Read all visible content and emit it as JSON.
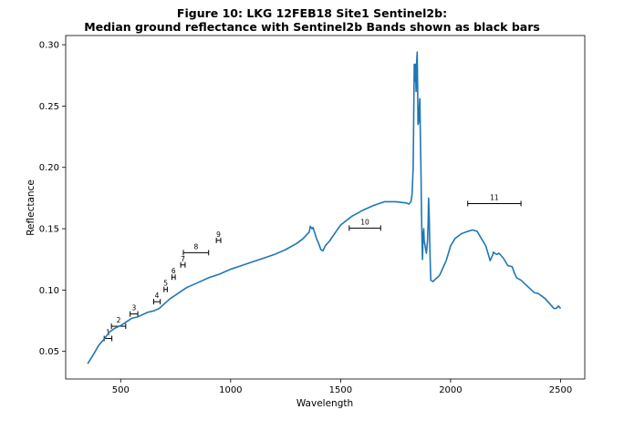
{
  "chart_data": {
    "type": "line",
    "title_line1": "Figure 10: LKG 12FEB18 Site1 Sentinel2b:",
    "title_line2": "Median ground reflectance with Sentinel2b Bands shown as black bars",
    "xlabel": "Wavelength",
    "ylabel": "Reflectance",
    "xlim": [
      250,
      2610
    ],
    "ylim": [
      0.0275,
      0.3075
    ],
    "xticks": [
      500,
      1000,
      1500,
      2000,
      2500
    ],
    "yticks": [
      0.05,
      0.1,
      0.15,
      0.2,
      0.25,
      0.3
    ],
    "xtick_labels": [
      "500",
      "1000",
      "1500",
      "2000",
      "2500"
    ],
    "ytick_labels": [
      "0.05",
      "0.10",
      "0.15",
      "0.20",
      "0.25",
      "0.30"
    ],
    "grid": false,
    "line_color": "#1f77b4",
    "band_color": "#000000",
    "series": [
      {
        "x": [
          350,
          375,
          400,
          425,
          450,
          475,
          500,
          525,
          550,
          575,
          600,
          625,
          650,
          675,
          700,
          725,
          750,
          775,
          800,
          850,
          900,
          950,
          1000,
          1050,
          1100,
          1150,
          1200,
          1250,
          1300,
          1330,
          1350,
          1357,
          1362,
          1370,
          1375,
          1380,
          1385,
          1390,
          1400,
          1410,
          1420,
          1430,
          1450,
          1480,
          1500,
          1550,
          1600,
          1650,
          1700,
          1750,
          1800,
          1810,
          1820,
          1825,
          1830,
          1835,
          1838,
          1840,
          1843,
          1845,
          1848,
          1850,
          1852,
          1855,
          1858,
          1860,
          1862,
          1865,
          1867,
          1870,
          1872,
          1875,
          1878,
          1880,
          1885,
          1890,
          1895,
          1898,
          1900,
          1903,
          1905,
          1908,
          1910,
          1920,
          1950,
          1980,
          2000,
          2020,
          2050,
          2080,
          2100,
          2120,
          2140,
          2160,
          2180,
          2190,
          2195,
          2200,
          2210,
          2220,
          2240,
          2260,
          2280,
          2290,
          2300,
          2320,
          2350,
          2380,
          2400,
          2430,
          2450,
          2470,
          2480,
          2490,
          2495,
          2500
        ],
        "y": [
          0.04,
          0.047,
          0.055,
          0.06,
          0.066,
          0.069,
          0.071,
          0.074,
          0.077,
          0.078,
          0.08,
          0.082,
          0.083,
          0.085,
          0.089,
          0.093,
          0.096,
          0.099,
          0.102,
          0.106,
          0.11,
          0.113,
          0.117,
          0.12,
          0.123,
          0.126,
          0.129,
          0.133,
          0.138,
          0.142,
          0.146,
          0.147,
          0.152,
          0.15,
          0.151,
          0.148,
          0.145,
          0.142,
          0.138,
          0.133,
          0.132,
          0.136,
          0.14,
          0.148,
          0.153,
          0.16,
          0.165,
          0.169,
          0.172,
          0.172,
          0.171,
          0.17,
          0.172,
          0.178,
          0.2,
          0.284,
          0.27,
          0.284,
          0.262,
          0.284,
          0.294,
          0.265,
          0.235,
          0.237,
          0.25,
          0.256,
          0.23,
          0.2,
          0.17,
          0.14,
          0.125,
          0.145,
          0.15,
          0.14,
          0.135,
          0.13,
          0.14,
          0.155,
          0.175,
          0.16,
          0.14,
          0.12,
          0.108,
          0.107,
          0.112,
          0.124,
          0.136,
          0.142,
          0.146,
          0.148,
          0.149,
          0.148,
          0.142,
          0.136,
          0.124,
          0.128,
          0.131,
          0.13,
          0.129,
          0.13,
          0.126,
          0.12,
          0.119,
          0.114,
          0.11,
          0.108,
          0.103,
          0.098,
          0.097,
          0.093,
          0.089,
          0.085,
          0.085,
          0.087,
          0.086,
          0.085
        ]
      }
    ],
    "bands": [
      {
        "label": "1",
        "min": 425,
        "max": 460,
        "y": 0.0605
      },
      {
        "label": "2",
        "min": 458,
        "max": 523,
        "y": 0.0705
      },
      {
        "label": "3",
        "min": 543,
        "max": 578,
        "y": 0.0805
      },
      {
        "label": "4",
        "min": 650,
        "max": 680,
        "y": 0.0905
      },
      {
        "label": "5",
        "min": 697,
        "max": 712,
        "y": 0.1005
      },
      {
        "label": "6",
        "min": 733,
        "max": 748,
        "y": 0.1105
      },
      {
        "label": "7",
        "min": 773,
        "max": 793,
        "y": 0.1205
      },
      {
        "label": "8",
        "min": 785,
        "max": 900,
        "y": 0.1305
      },
      {
        "label": "9",
        "min": 935,
        "max": 955,
        "y": 0.1405
      },
      {
        "label": "10",
        "min": 1539,
        "max": 1682,
        "y": 0.1505
      },
      {
        "label": "11",
        "min": 2078,
        "max": 2320,
        "y": 0.1705
      }
    ]
  }
}
